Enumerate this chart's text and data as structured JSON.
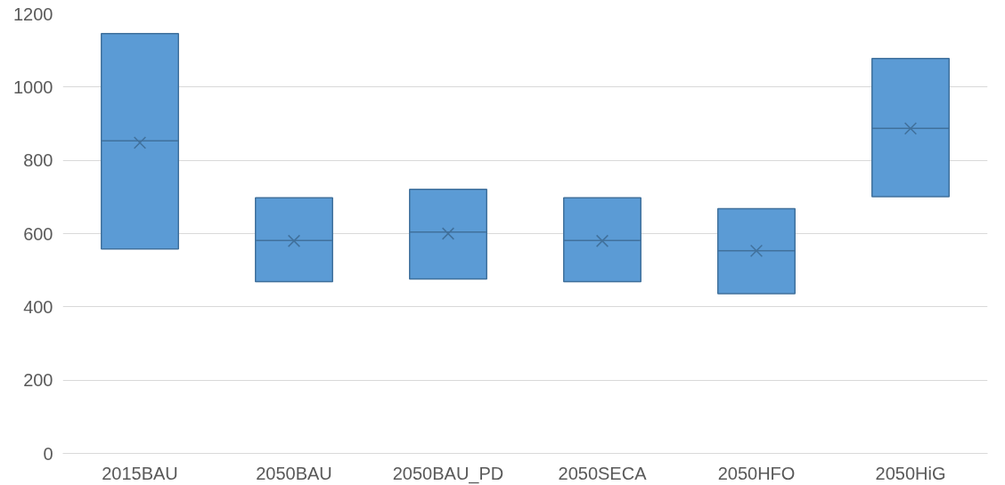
{
  "chart_data": {
    "type": "box",
    "categories": [
      "2015BAU",
      "2050BAU",
      "2050BAU_PD",
      "2050SECA",
      "2050HFO",
      "2050HiG"
    ],
    "boxes": [
      {
        "low": 558,
        "q1": 558,
        "median": 853,
        "q3": 1146,
        "high": 1146,
        "mean": 848
      },
      {
        "low": 469,
        "q1": 469,
        "median": 581,
        "q3": 698,
        "high": 698,
        "mean": 580
      },
      {
        "low": 476,
        "q1": 476,
        "median": 604,
        "q3": 721,
        "high": 721,
        "mean": 600
      },
      {
        "low": 469,
        "q1": 469,
        "median": 581,
        "q3": 698,
        "high": 698,
        "mean": 580
      },
      {
        "low": 436,
        "q1": 436,
        "median": 553,
        "q3": 668,
        "high": 668,
        "mean": 553
      },
      {
        "low": 701,
        "q1": 701,
        "median": 887,
        "q3": 1078,
        "high": 1078,
        "mean": 887
      }
    ],
    "color": "#5b9bd5",
    "ylim": [
      0,
      1200
    ],
    "yticks": [
      0,
      200,
      400,
      600,
      800,
      1000,
      1200
    ],
    "grid": "y",
    "marker": "cross"
  }
}
